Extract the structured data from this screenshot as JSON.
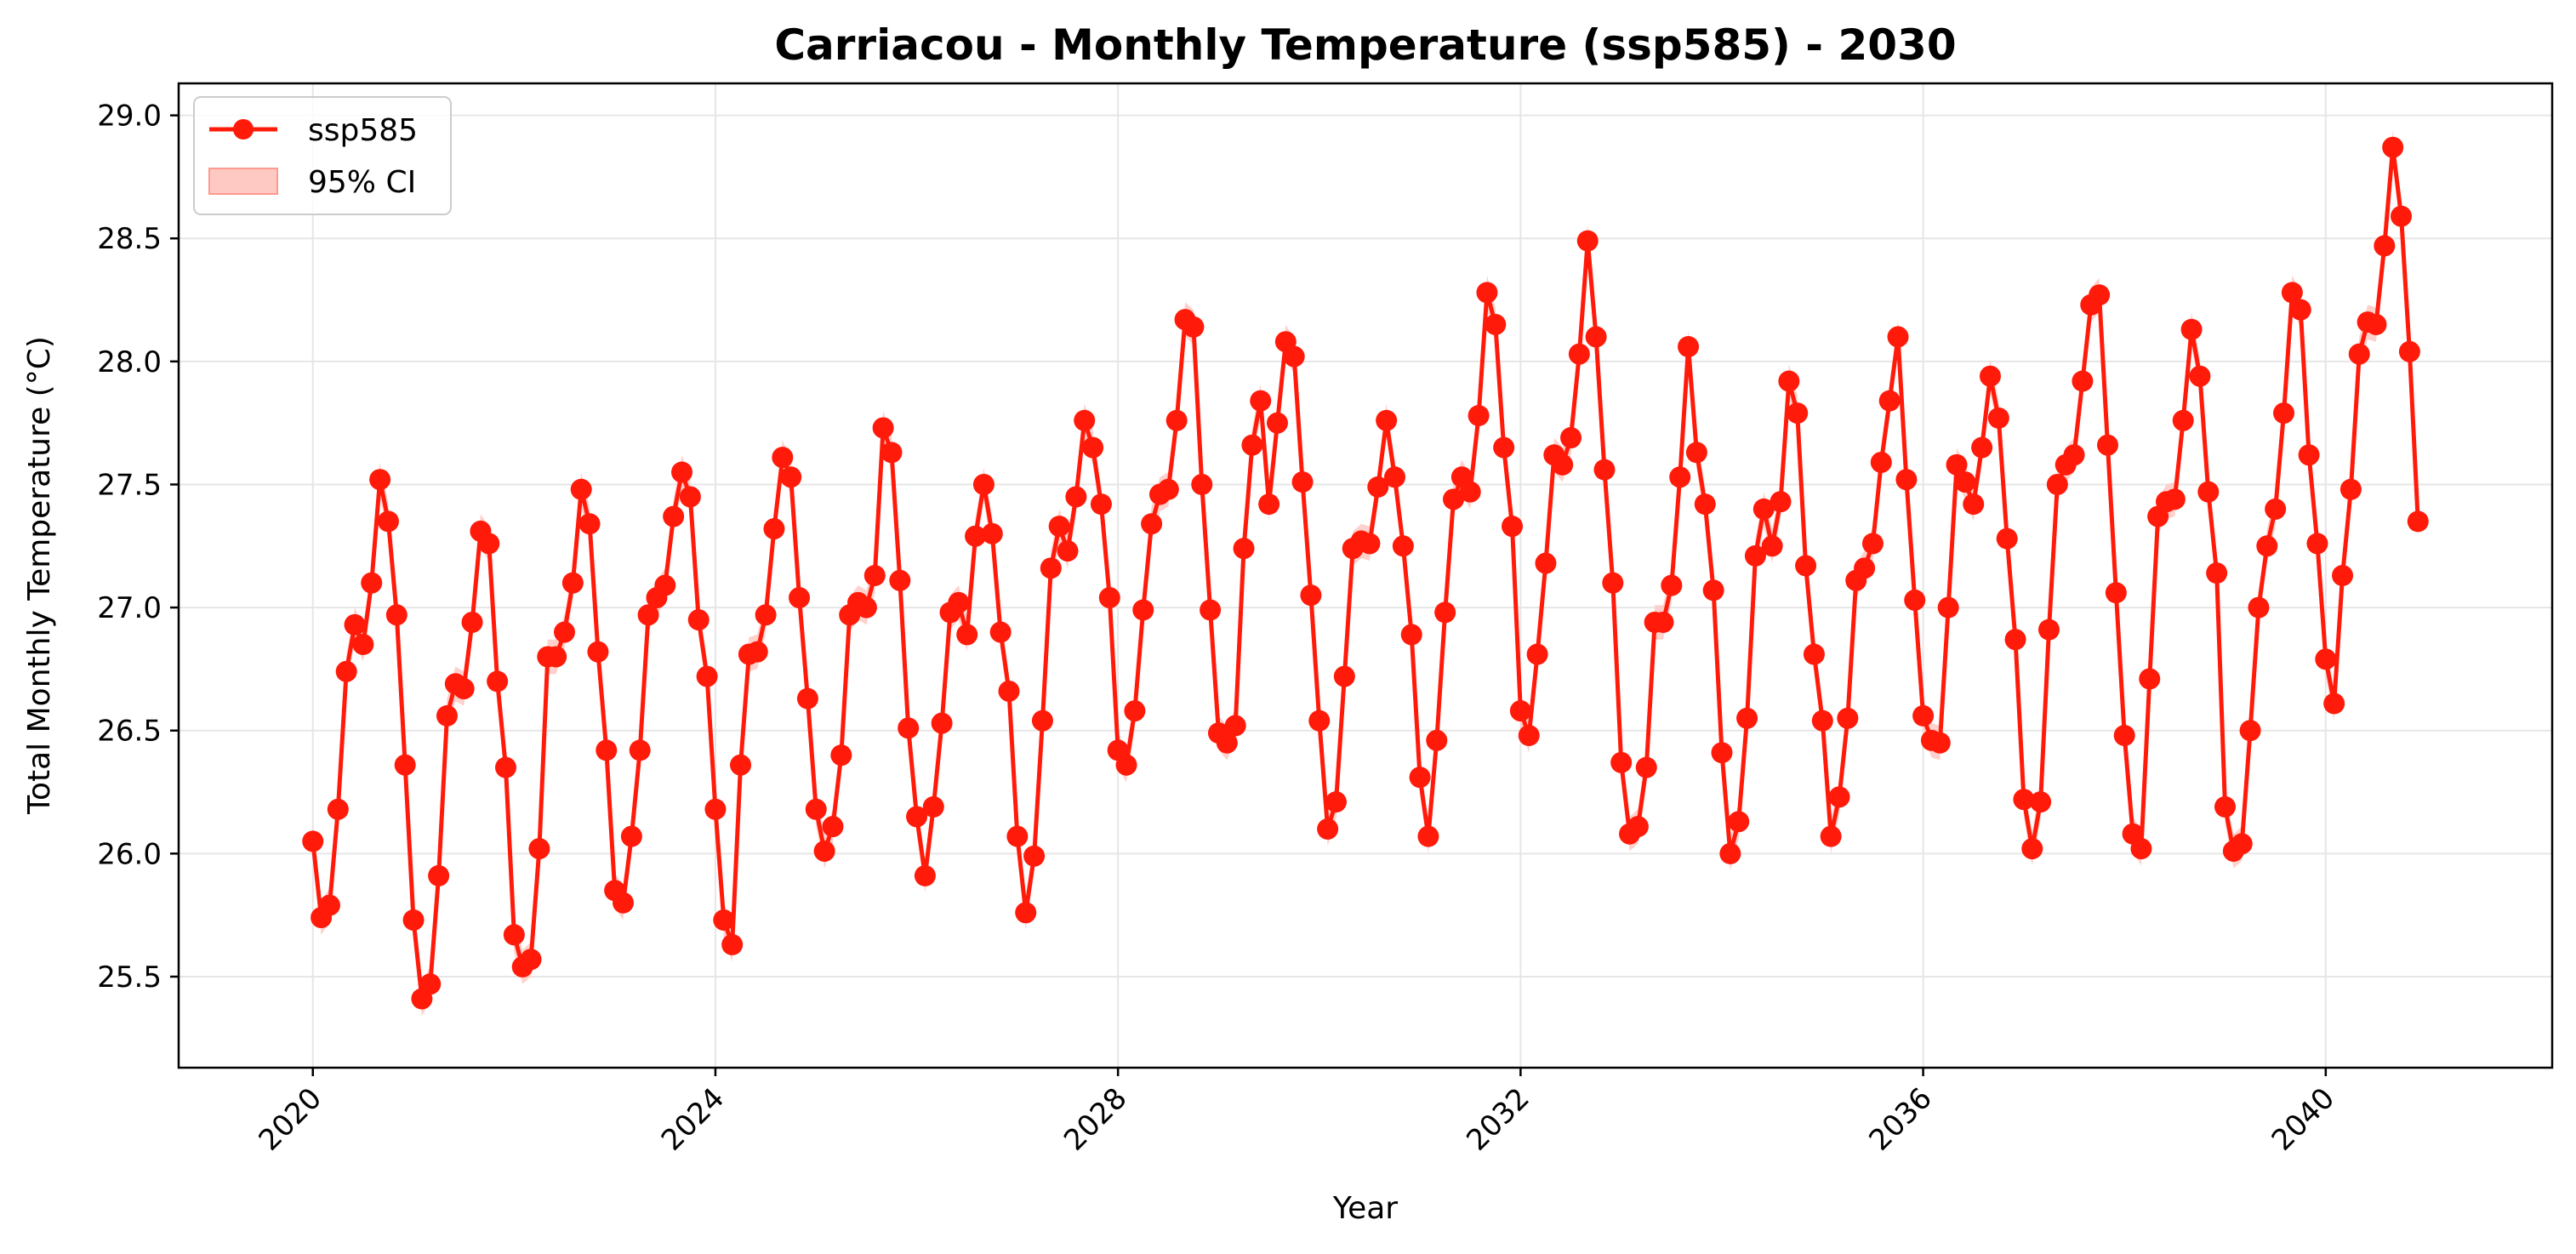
{
  "chart_data": {
    "type": "line",
    "title": "Carriacou - Monthly Temperature (ssp585) - 2030",
    "xlabel": "Year",
    "ylabel": "Total Monthly Temperature (°C)",
    "xlim": [
      "2018-09",
      "2042-04"
    ],
    "ylim": [
      25.13,
      29.13
    ],
    "x_ticks": [
      "2020",
      "2024",
      "2028",
      "2032",
      "2036",
      "2040"
    ],
    "y_ticks": [
      "25.5",
      "26.0",
      "26.5",
      "27.0",
      "27.5",
      "28.0",
      "28.5",
      "29.0"
    ],
    "grid": true,
    "legend_position": "top-left",
    "legend": [
      "ssp585",
      "95% CI"
    ],
    "series_color": "#ff1a0a",
    "ci_color": "#ffc9c3",
    "ci_halfwidth": 0.07,
    "series": [
      {
        "name": "ssp585",
        "start": "2020-01",
        "values": [
          26.05,
          25.74,
          25.79,
          26.18,
          26.74,
          26.93,
          26.85,
          27.1,
          27.52,
          27.35,
          26.97,
          26.36,
          25.73,
          25.41,
          25.47,
          25.91,
          26.56,
          26.69,
          26.67,
          26.94,
          27.31,
          27.26,
          26.7,
          26.35,
          25.67,
          25.54,
          25.57,
          26.02,
          26.8,
          26.8,
          26.9,
          27.1,
          27.48,
          27.34,
          26.82,
          26.42,
          25.85,
          25.8,
          26.07,
          26.42,
          26.97,
          27.04,
          27.09,
          27.37,
          27.55,
          27.45,
          26.95,
          26.72,
          26.18,
          25.73,
          25.63,
          26.36,
          26.81,
          26.82,
          26.97,
          27.32,
          27.61,
          27.53,
          27.04,
          26.63,
          26.18,
          26.01,
          26.11,
          26.4,
          26.97,
          27.02,
          27.0,
          27.13,
          27.73,
          27.63,
          27.11,
          26.51,
          26.15,
          25.91,
          26.19,
          26.53,
          26.98,
          27.02,
          26.89,
          27.29,
          27.5,
          27.3,
          26.9,
          26.66,
          26.07,
          25.76,
          25.99,
          26.54,
          27.16,
          27.33,
          27.23,
          27.45,
          27.76,
          27.65,
          27.42,
          27.04,
          26.42,
          26.36,
          26.58,
          26.99,
          27.34,
          27.46,
          27.48,
          27.76,
          28.17,
          28.14,
          27.5,
          26.99,
          26.49,
          26.45,
          26.52,
          27.24,
          27.66,
          27.84,
          27.42,
          27.75,
          28.08,
          28.02,
          27.51,
          27.05,
          26.54,
          26.1,
          26.21,
          26.72,
          27.24,
          27.27,
          27.26,
          27.49,
          27.76,
          27.53,
          27.25,
          26.89,
          26.31,
          26.07,
          26.46,
          26.98,
          27.44,
          27.53,
          27.47,
          27.78,
          28.28,
          28.15,
          27.65,
          27.33,
          26.58,
          26.48,
          26.81,
          27.18,
          27.62,
          27.58,
          27.69,
          28.03,
          28.49,
          28.1,
          27.56,
          27.1,
          26.37,
          26.08,
          26.11,
          26.35,
          26.94,
          26.94,
          27.09,
          27.53,
          28.06,
          27.63,
          27.42,
          27.07,
          26.41,
          26.0,
          26.13,
          26.55,
          27.21,
          27.4,
          27.25,
          27.43,
          27.92,
          27.79,
          27.17,
          26.81,
          26.54,
          26.07,
          26.23,
          26.55,
          27.11,
          27.16,
          27.26,
          27.59,
          27.84,
          28.1,
          27.52,
          27.03,
          26.56,
          26.46,
          26.45,
          27.0,
          27.58,
          27.51,
          27.42,
          27.65,
          27.94,
          27.77,
          27.28,
          26.87,
          26.22,
          26.02,
          26.21,
          26.91,
          27.5,
          27.58,
          27.62,
          27.92,
          28.23,
          28.27,
          27.66,
          27.06,
          26.48,
          26.08,
          26.02,
          26.71,
          27.37,
          27.43,
          27.44,
          27.76,
          28.13,
          27.94,
          27.47,
          27.14,
          26.19,
          26.01,
          26.04,
          26.5,
          27.0,
          27.25,
          27.4,
          27.79,
          28.28,
          28.21,
          27.62,
          27.26,
          26.79,
          26.61,
          27.13,
          27.48,
          28.03,
          28.16,
          28.15,
          28.47,
          28.87,
          28.59,
          28.04,
          27.35
        ]
      }
    ]
  }
}
